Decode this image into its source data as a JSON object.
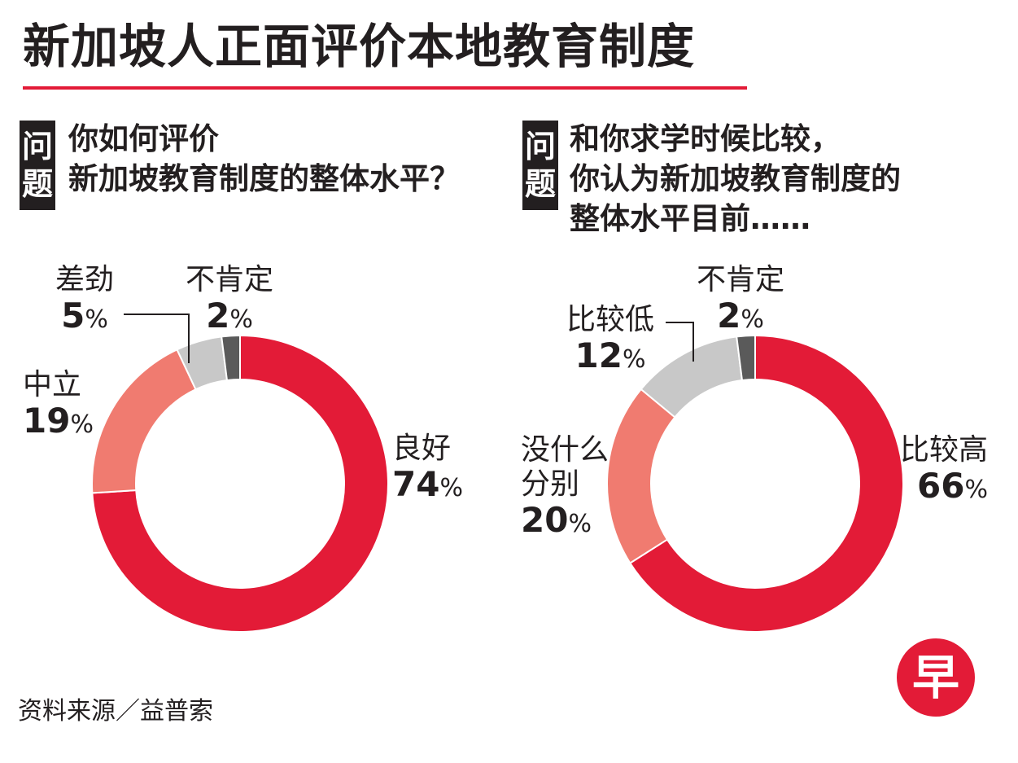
{
  "title": "新加坡人正面评价本地教育制度",
  "source": "资料来源／益普索",
  "logo_text": "早",
  "colors": {
    "accent_red": "#e31b37",
    "salmon": "#f07b70",
    "light_gray": "#c8c8c8",
    "dark_gray": "#5a5a5a"
  },
  "questions": [
    {
      "badge": [
        "问",
        "题"
      ],
      "lines": [
        "你如何评价",
        "新加坡教育制度的整体水平？"
      ]
    },
    {
      "badge": [
        "问",
        "题"
      ],
      "lines": [
        "和你求学时候比较，",
        "你认为新加坡教育制度的",
        "整体水平目前……"
      ]
    }
  ],
  "chart_data": [
    {
      "type": "pie",
      "title": "",
      "slices": [
        {
          "label": "良好",
          "value": 74,
          "display": "74",
          "color": "#e31b37"
        },
        {
          "label": "中立",
          "value": 19,
          "display": "19",
          "color": "#f07b70"
        },
        {
          "label": "差劲",
          "value": 5,
          "display": "5",
          "color": "#c8c8c8"
        },
        {
          "label": "不肯定",
          "value": 2,
          "display": "2",
          "color": "#5a5a5a"
        }
      ]
    },
    {
      "type": "pie",
      "title": "",
      "slices": [
        {
          "label": "比较高",
          "value": 66,
          "display": "66",
          "color": "#e31b37"
        },
        {
          "label": "没什么分别",
          "label_lines": [
            "没什么",
            "分别"
          ],
          "value": 20,
          "display": "20",
          "color": "#f07b70"
        },
        {
          "label": "比较低",
          "value": 12,
          "display": "12",
          "color": "#c8c8c8"
        },
        {
          "label": "不肯定",
          "value": 2,
          "display": "2",
          "color": "#5a5a5a"
        }
      ]
    }
  ],
  "pct_sign": "%"
}
